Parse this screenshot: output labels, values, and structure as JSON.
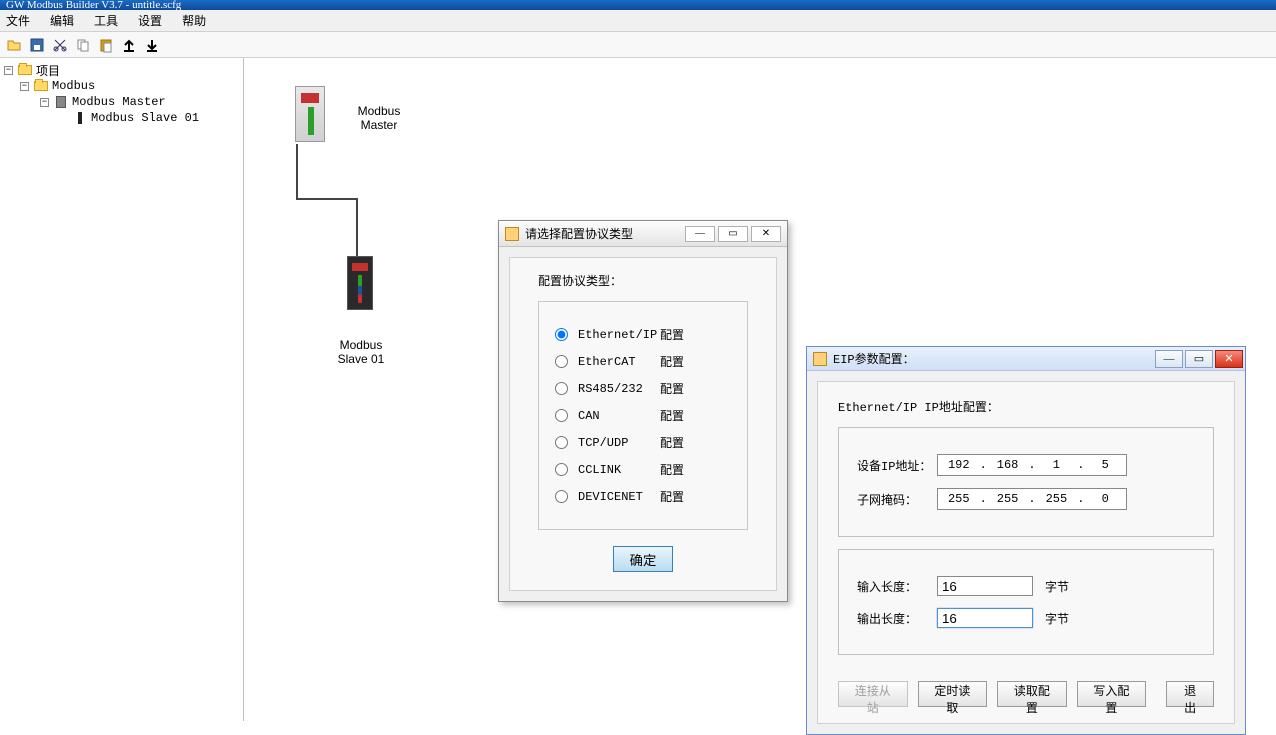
{
  "app": {
    "title": "GW Modbus Builder V3.7 - untitle.scfg"
  },
  "menu": {
    "file": "文件",
    "edit": "编辑",
    "tools": "工具",
    "settings": "设置",
    "help": "帮助"
  },
  "toolbar_icons": [
    "open",
    "save",
    "cut",
    "copy",
    "paste",
    "upload",
    "download"
  ],
  "tree": {
    "root": "项目",
    "n1": "Modbus",
    "n2": "Modbus Master",
    "n3": "Modbus Slave  01"
  },
  "canvas": {
    "master_label_1": "Modbus",
    "master_label_2": "Master",
    "slave_label_1": "Modbus",
    "slave_label_2": "Slave  01"
  },
  "dlg1": {
    "title": "请选择配置协议类型",
    "heading": "配置协议类型：",
    "options": [
      {
        "label": "Ethernet/IP",
        "action": "配置",
        "selected": true
      },
      {
        "label": "EtherCAT",
        "action": "配置",
        "selected": false
      },
      {
        "label": "RS485/232",
        "action": "配置",
        "selected": false
      },
      {
        "label": "CAN",
        "action": "配置",
        "selected": false
      },
      {
        "label": "TCP/UDP",
        "action": "配置",
        "selected": false
      },
      {
        "label": "CCLINK",
        "action": "配置",
        "selected": false
      },
      {
        "label": "DEVICENET",
        "action": "配置",
        "selected": false
      }
    ],
    "ok": "确定"
  },
  "dlg2": {
    "title": "EIP参数配置：",
    "section1_title": "Ethernet/IP IP地址配置：",
    "ip_label": "设备IP地址：",
    "ip": [
      "192",
      "168",
      "1",
      "5"
    ],
    "mask_label": "子网掩码：",
    "mask": [
      "255",
      "255",
      "255",
      "0"
    ],
    "in_label": "输入长度：",
    "in_value": "16",
    "out_label": "输出长度：",
    "out_value": "16",
    "unit": "字节",
    "buttons": {
      "connect": "连接从站",
      "timed_read": "定时读取",
      "read_cfg": "读取配置",
      "write_cfg": "写入配置",
      "exit": "退出"
    }
  },
  "colors": {
    "title_gradient_top": "#1a6bc7",
    "title_gradient_bot": "#0d4a9a",
    "dialog2_title_top": "#e8f0fb",
    "dialog2_title_bot": "#cfe0f6",
    "close_red": "#d9321a"
  }
}
